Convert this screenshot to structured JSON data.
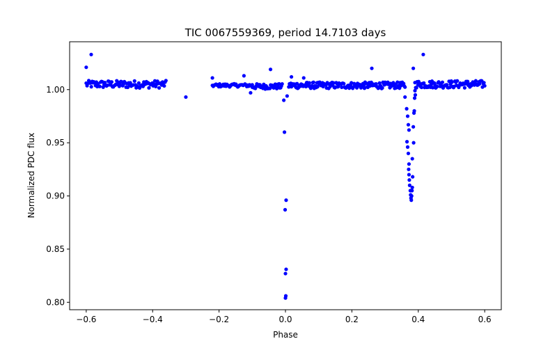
{
  "chart_data": {
    "type": "scatter",
    "title": "TIC 0067559369, period 14.7103 days",
    "xlabel": "Phase",
    "ylabel": "Normalized PDC flux",
    "xlim": [
      -0.65,
      0.65
    ],
    "ylim": [
      0.793,
      1.045
    ],
    "xticks": [
      -0.6,
      -0.4,
      -0.2,
      0.0,
      0.2,
      0.4,
      0.6
    ],
    "xtick_labels": [
      "−0.6",
      "−0.4",
      "−0.2",
      "0.0",
      "0.2",
      "0.4",
      "0.6"
    ],
    "yticks": [
      0.8,
      0.85,
      0.9,
      0.95,
      1.0
    ],
    "ytick_labels": [
      "0.80",
      "0.85",
      "0.90",
      "0.95",
      "1.00"
    ],
    "grid": false,
    "marker_color": "#0000ff",
    "series": [
      {
        "name": "PDC flux",
        "points": [
          [
            -0.6,
            1.021
          ],
          [
            -0.585,
            1.033
          ],
          [
            -0.3,
            0.993
          ],
          [
            -0.125,
            1.013
          ],
          [
            -0.045,
            1.019
          ],
          [
            -0.005,
            0.99
          ],
          [
            -0.003,
            0.96
          ],
          [
            -0.001,
            0.887
          ],
          [
            0.002,
            0.896
          ],
          [
            0.002,
            0.831
          ],
          [
            0.0,
            0.827
          ],
          [
            0.001,
            0.806
          ],
          [
            0.0,
            0.804
          ],
          [
            0.005,
            0.994
          ],
          [
            0.018,
            1.012
          ],
          [
            0.055,
            1.011
          ],
          [
            0.26,
            1.02
          ],
          [
            0.385,
            1.02
          ],
          [
            0.415,
            1.033
          ],
          [
            -0.105,
            0.997
          ],
          [
            -0.22,
            1.011
          ],
          [
            0.36,
            0.993
          ],
          [
            0.365,
            0.982
          ],
          [
            0.368,
            0.975
          ],
          [
            0.37,
            0.967
          ],
          [
            0.372,
            0.962
          ],
          [
            0.366,
            0.951
          ],
          [
            0.368,
            0.946
          ],
          [
            0.37,
            0.94
          ],
          [
            0.372,
            0.93
          ],
          [
            0.371,
            0.925
          ],
          [
            0.372,
            0.92
          ],
          [
            0.373,
            0.915
          ],
          [
            0.374,
            0.91
          ],
          [
            0.376,
            0.905
          ],
          [
            0.377,
            0.901
          ],
          [
            0.378,
            0.898
          ],
          [
            0.379,
            0.896
          ],
          [
            0.38,
            0.9
          ],
          [
            0.381,
            0.905
          ],
          [
            0.382,
            0.908
          ],
          [
            0.383,
            0.918
          ],
          [
            0.382,
            0.935
          ],
          [
            0.386,
            0.95
          ],
          [
            0.385,
            0.965
          ],
          [
            0.387,
            0.978
          ],
          [
            0.388,
            0.98
          ],
          [
            0.389,
            0.992
          ],
          [
            0.391,
            0.995
          ],
          [
            0.39,
            0.999
          ]
        ]
      }
    ],
    "baseline_segments": [
      {
        "x_start": -0.6,
        "x_end": -0.36,
        "y": 1.005,
        "jitter": 0.0035,
        "count": 95
      },
      {
        "x_start": -0.22,
        "x_end": -0.1,
        "y": 1.004,
        "jitter": 0.0015,
        "count": 45
      },
      {
        "x_start": -0.1,
        "x_end": -0.01,
        "y": 1.003,
        "jitter": 0.0025,
        "count": 40
      },
      {
        "x_start": 0.01,
        "x_end": 0.36,
        "y": 1.004,
        "jitter": 0.003,
        "count": 170
      },
      {
        "x_start": 0.39,
        "x_end": 0.6,
        "y": 1.005,
        "jitter": 0.0035,
        "count": 95
      }
    ]
  }
}
